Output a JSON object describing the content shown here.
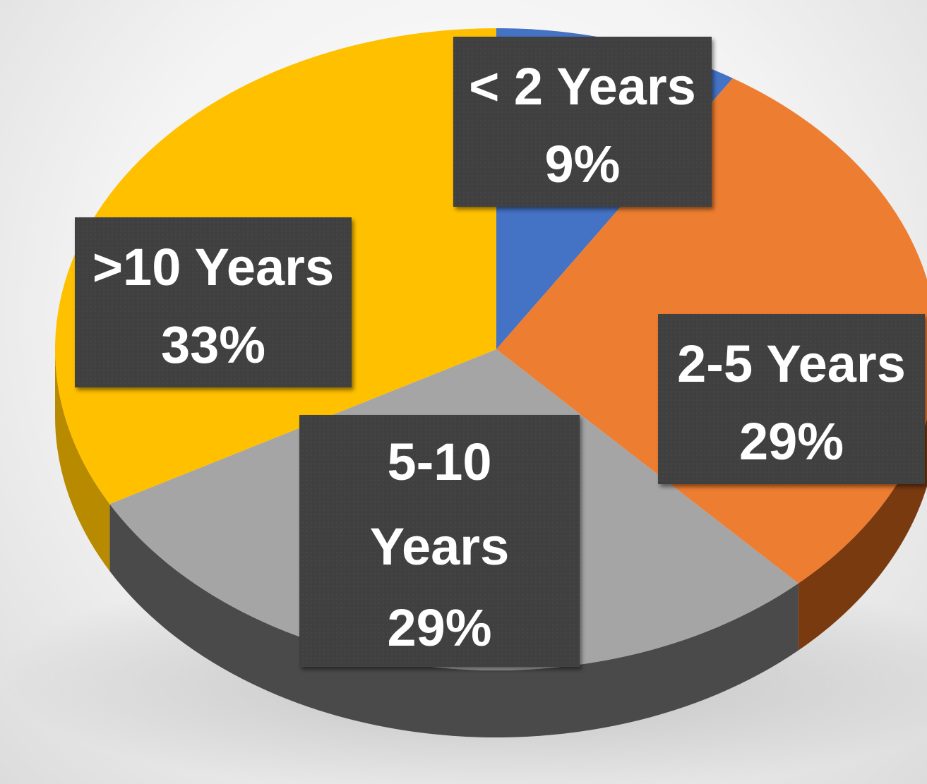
{
  "chart_data": {
    "type": "pie",
    "title": "",
    "legend": "none",
    "slices": [
      {
        "label": "< 2 Years",
        "value": 9,
        "pct_label": "9%",
        "color": "#4472C4",
        "side_color": "#2E4E8A"
      },
      {
        "label": "2-5 Years",
        "value": 29,
        "pct_label": "29%",
        "color": "#ED7D31",
        "side_color": "#7A3A10"
      },
      {
        "label": "5-10 Years",
        "value": 29,
        "pct_label": "29%",
        "color": "#A5A5A5",
        "side_color": "#4A4A4A"
      },
      {
        "label": ">10 Years",
        "value": 33,
        "pct_label": "33%",
        "color": "#FFC000",
        "side_color": "#B88A00"
      }
    ]
  },
  "label_box_color": "#404040"
}
